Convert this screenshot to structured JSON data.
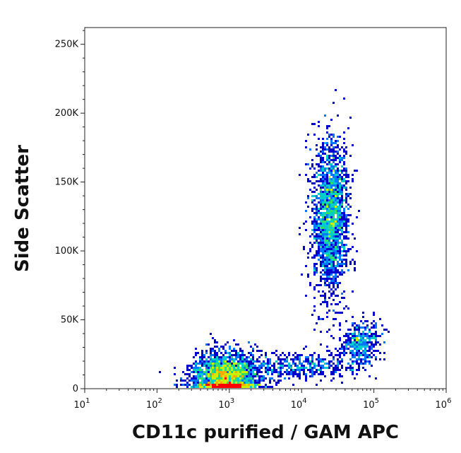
{
  "chart_data": {
    "type": "scatter",
    "title": "",
    "xlabel": "CD11c purified / GAM APC",
    "ylabel": "Side Scatter",
    "x_scale": "log",
    "xlim": [
      10,
      1000000
    ],
    "ylim": [
      0,
      262144
    ],
    "x_ticks": [
      {
        "value": 10,
        "base": "10",
        "exp": "1"
      },
      {
        "value": 100,
        "base": "10",
        "exp": "2"
      },
      {
        "value": 1000,
        "base": "10",
        "exp": "3"
      },
      {
        "value": 10000,
        "base": "10",
        "exp": "4"
      },
      {
        "value": 100000,
        "base": "10",
        "exp": "5"
      },
      {
        "value": 1000000,
        "base": "10",
        "exp": "6"
      }
    ],
    "y_ticks": [
      {
        "value": 0,
        "label": "0"
      },
      {
        "value": 50000,
        "label": "50K"
      },
      {
        "value": 100000,
        "label": "100K"
      },
      {
        "value": 150000,
        "label": "150K"
      },
      {
        "value": 200000,
        "label": "200K"
      },
      {
        "value": 250000,
        "label": "250K"
      }
    ],
    "color_scale": [
      "#0000cc",
      "#0077ff",
      "#00cccc",
      "#33dd66",
      "#ccee00",
      "#ffaa00",
      "#ff0000"
    ],
    "populations": [
      {
        "center_x": 900,
        "center_y": 8000,
        "spread_log_x": 0.23,
        "spread_y": 9000,
        "weight": 2600
      },
      {
        "center_x": 25000,
        "center_y": 125000,
        "spread_log_x": 0.12,
        "spread_y": 28000,
        "weight": 2000
      },
      {
        "center_x": 65000,
        "center_y": 33000,
        "spread_log_x": 0.15,
        "spread_y": 8000,
        "weight": 450
      },
      {
        "center_x": 10000,
        "center_y": 16000,
        "spread_log_x": 0.35,
        "spread_y": 5000,
        "weight": 420
      }
    ]
  }
}
